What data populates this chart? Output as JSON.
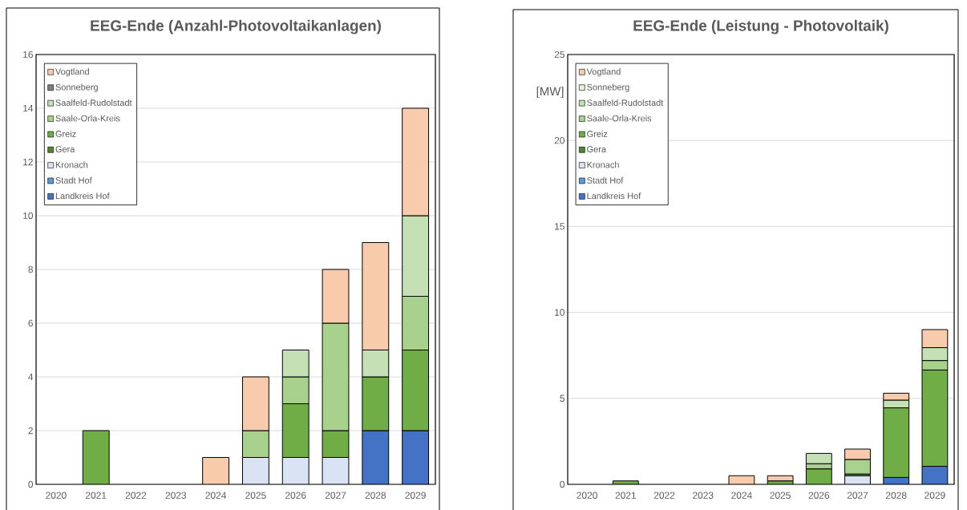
{
  "chart_data": [
    {
      "type": "bar",
      "stacked": true,
      "title": "EEG-Ende (Anzahl-Photovoltaikanlagen)",
      "categories": [
        "2020",
        "2021",
        "2022",
        "2023",
        "2024",
        "2025",
        "2026",
        "2027",
        "2028",
        "2029"
      ],
      "series": [
        {
          "name": "Landkreis Hof",
          "color": "#4472c4",
          "values": [
            null,
            null,
            null,
            null,
            null,
            null,
            null,
            null,
            2,
            2
          ]
        },
        {
          "name": "Stadt Hof",
          "color": "#5b9bd5",
          "values": [
            null,
            null,
            null,
            null,
            null,
            null,
            null,
            null,
            null,
            null
          ]
        },
        {
          "name": "Kronach",
          "color": "#dae3f3",
          "values": [
            null,
            null,
            null,
            null,
            null,
            1,
            1,
            1,
            null,
            null
          ]
        },
        {
          "name": "Gera",
          "color": "#548235",
          "values": [
            null,
            null,
            null,
            null,
            null,
            null,
            null,
            null,
            null,
            null
          ]
        },
        {
          "name": "Greiz",
          "color": "#70ad47",
          "values": [
            null,
            2,
            null,
            null,
            null,
            null,
            2,
            1,
            2,
            3
          ]
        },
        {
          "name": "Saale-Orla-Kreis",
          "color": "#a9d18e",
          "values": [
            null,
            null,
            null,
            null,
            null,
            1,
            1,
            4,
            null,
            2
          ]
        },
        {
          "name": "Saalfeld-Rudolstadt",
          "color": "#c5e0b4",
          "values": [
            null,
            null,
            null,
            null,
            null,
            null,
            1,
            null,
            1,
            3
          ]
        },
        {
          "name": "Sonneberg",
          "color": "#7f7f7f",
          "values": [
            null,
            null,
            null,
            null,
            null,
            null,
            null,
            null,
            null,
            null
          ]
        },
        {
          "name": "Vogtland",
          "color": "#f8cbad",
          "values": [
            null,
            null,
            null,
            null,
            1,
            2,
            null,
            2,
            4,
            4
          ]
        }
      ],
      "ylim": [
        0,
        16
      ],
      "yticks": [
        0,
        2,
        4,
        6,
        8,
        10,
        12,
        14,
        16
      ],
      "grid": "y",
      "legend": "top left"
    },
    {
      "type": "bar",
      "stacked": true,
      "title": "EEG-Ende (Leistung - Photovoltaik)",
      "ylabel": "[MW]",
      "categories": [
        "2020",
        "2021",
        "2022",
        "2023",
        "2024",
        "2025",
        "2026",
        "2027",
        "2028",
        "2029"
      ],
      "series": [
        {
          "name": "Landkreis Hof",
          "color": "#4472c4",
          "values": [
            null,
            null,
            null,
            null,
            null,
            null,
            null,
            null,
            0.4,
            1.05
          ]
        },
        {
          "name": "Stadt Hof",
          "color": "#5b9bd5",
          "values": [
            null,
            null,
            null,
            null,
            null,
            null,
            null,
            null,
            null,
            null
          ]
        },
        {
          "name": "Kronach",
          "color": "#dae3f3",
          "values": [
            null,
            null,
            null,
            null,
            null,
            null,
            null,
            0.5,
            null,
            null
          ]
        },
        {
          "name": "Gera",
          "color": "#548235",
          "values": [
            null,
            null,
            null,
            null,
            null,
            null,
            null,
            null,
            null,
            null
          ]
        },
        {
          "name": "Greiz",
          "color": "#70ad47",
          "values": [
            null,
            0.2,
            null,
            null,
            null,
            0.2,
            0.9,
            0.1,
            4.05,
            5.6
          ]
        },
        {
          "name": "Saale-Orla-Kreis",
          "color": "#a9d18e",
          "values": [
            null,
            null,
            null,
            null,
            null,
            null,
            0.3,
            0.85,
            null,
            0.55
          ]
        },
        {
          "name": "Saalfeld-Rudolstadt",
          "color": "#c5e0b4",
          "values": [
            null,
            null,
            null,
            null,
            null,
            null,
            0.6,
            null,
            0.45,
            0.75
          ]
        },
        {
          "name": "Sonneberg",
          "color": "#e2efda",
          "values": [
            null,
            null,
            null,
            null,
            null,
            null,
            null,
            null,
            null,
            null
          ]
        },
        {
          "name": "Vogtland",
          "color": "#f8cbad",
          "values": [
            null,
            null,
            null,
            null,
            0.5,
            0.3,
            null,
            0.6,
            0.4,
            1.05
          ]
        }
      ],
      "ylim": [
        0,
        25
      ],
      "yticks": [
        0,
        5,
        10,
        15,
        20,
        25
      ],
      "grid": "y",
      "legend": "top left"
    }
  ]
}
